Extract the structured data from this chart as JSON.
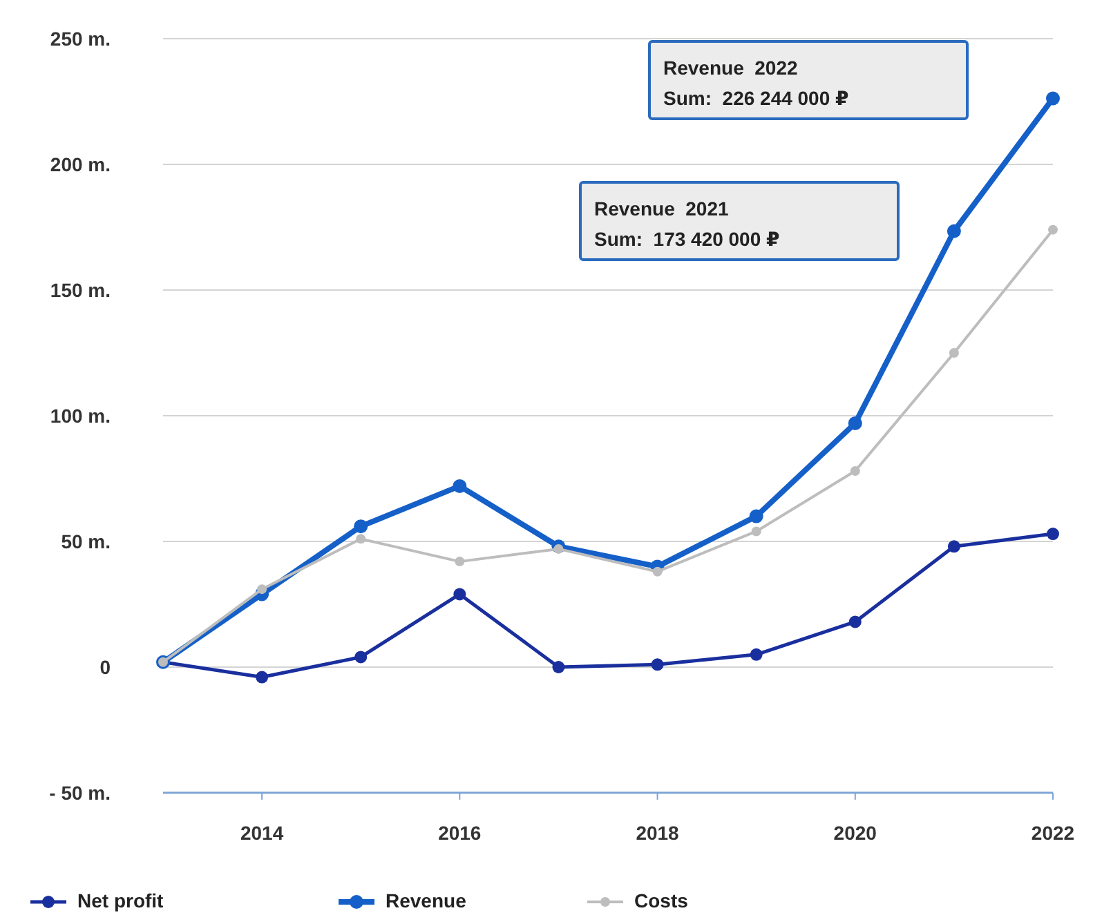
{
  "chart_data": {
    "type": "line",
    "x": [
      2013,
      2014,
      2015,
      2016,
      2017,
      2018,
      2019,
      2020,
      2021,
      2022
    ],
    "xlim": [
      2013,
      2022
    ],
    "xticks": [
      2014,
      2016,
      2018,
      2020,
      2022
    ],
    "ylim": [
      -50,
      250
    ],
    "yticks": [
      {
        "value": -50,
        "label": "- 50 m."
      },
      0,
      {
        "value": 50,
        "label": "50 m."
      },
      {
        "value": 100,
        "label": "100 m."
      },
      {
        "value": 150,
        "label": "150 m."
      },
      {
        "value": 200,
        "label": "200 m."
      },
      {
        "value": 250,
        "label": "250 m."
      }
    ],
    "grid": "y",
    "legend": "bottom",
    "marker": "circle",
    "series": [
      {
        "name": "Net profit",
        "color": "#1a2f9e",
        "values": [
          2,
          -4,
          4,
          29,
          0,
          1,
          5,
          18,
          48,
          53
        ]
      },
      {
        "name": "Revenue",
        "color": "#1560c8",
        "values": [
          2,
          29,
          56,
          72,
          48,
          40,
          60,
          97,
          173.42,
          226.244
        ]
      },
      {
        "name": "Costs",
        "color": "#bdbdbd",
        "values": [
          2,
          31,
          51,
          42,
          47,
          38,
          54,
          78,
          125,
          174
        ]
      }
    ],
    "annotations": [
      "Revenue  2022\nSum:  226 244 000 ₽",
      "Revenue  2021\nSum:  173 420 000 ₽"
    ]
  }
}
